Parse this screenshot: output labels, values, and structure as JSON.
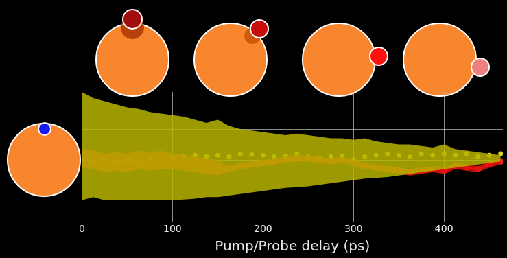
{
  "chart_data": {
    "type": "line",
    "x_label": "Pump/Probe delay (ps)",
    "x": [
      0,
      12.5,
      25,
      37.5,
      50,
      62.5,
      75,
      87.5,
      100,
      112.5,
      125,
      137.5,
      150,
      162.5,
      175,
      187.5,
      200,
      212.5,
      225,
      237.5,
      250,
      262.5,
      275,
      287.5,
      300,
      312.5,
      325,
      337.5,
      350,
      362.5,
      375,
      387.5,
      400,
      412.5,
      425,
      437.5,
      450,
      462.5
    ],
    "xlim": [
      0,
      465
    ],
    "xticks": [
      0,
      100,
      200,
      300,
      400
    ],
    "ylim": [
      -2,
      2.2
    ],
    "yticks": [
      -1,
      0,
      1
    ],
    "grid": true,
    "tick_labels": "x",
    "series": [
      {
        "type": "band",
        "color": "#b8b400",
        "upper": [
          2.2,
          2.0,
          1.9,
          1.8,
          1.7,
          1.65,
          1.55,
          1.5,
          1.45,
          1.4,
          1.3,
          1.2,
          1.3,
          1.1,
          1.0,
          0.95,
          0.9,
          0.85,
          0.8,
          0.85,
          0.8,
          0.75,
          0.7,
          0.7,
          0.65,
          0.7,
          0.6,
          0.55,
          0.5,
          0.5,
          0.45,
          0.4,
          0.5,
          0.35,
          0.3,
          0.25,
          0.2,
          0.15
        ],
        "lower": [
          -1.3,
          -1.2,
          -1.3,
          -1.3,
          -1.3,
          -1.3,
          -1.3,
          -1.3,
          -1.3,
          -1.28,
          -1.25,
          -1.2,
          -1.2,
          -1.15,
          -1.1,
          -1.05,
          -1.0,
          -0.95,
          -0.9,
          -0.88,
          -0.85,
          -0.8,
          -0.75,
          -0.7,
          -0.65,
          -0.6,
          -0.58,
          -0.55,
          -0.5,
          -0.45,
          -0.4,
          -0.35,
          -0.3,
          -0.25,
          -0.2,
          -0.15,
          -0.1,
          -0.05
        ]
      },
      {
        "type": "band",
        "color": "#e01010",
        "upper": [
          0.35,
          0.3,
          0.2,
          0.25,
          0.2,
          0.3,
          0.25,
          0.3,
          0.2,
          0.15,
          0.1,
          0.05,
          0.0,
          -0.2,
          -0.1,
          -0.05,
          0.0,
          0.05,
          0.1,
          0.15,
          0.15,
          0.1,
          0.05,
          0.1,
          0.0,
          -0.1,
          -0.15,
          -0.2,
          -0.25,
          -0.3,
          -0.25,
          -0.2,
          -0.25,
          -0.1,
          -0.15,
          -0.2,
          -0.05,
          0.05
        ],
        "lower": [
          -0.25,
          -0.3,
          -0.4,
          -0.35,
          -0.4,
          -0.3,
          -0.35,
          -0.3,
          -0.3,
          -0.35,
          -0.4,
          -0.45,
          -0.5,
          -0.4,
          -0.3,
          -0.25,
          -0.2,
          -0.15,
          -0.1,
          -0.05,
          -0.05,
          -0.1,
          -0.15,
          -0.1,
          -0.2,
          -0.3,
          -0.35,
          -0.4,
          -0.45,
          -0.5,
          -0.45,
          -0.4,
          -0.45,
          -0.3,
          -0.35,
          -0.4,
          -0.25,
          -0.15
        ]
      },
      {
        "type": "scatter",
        "color": "#d8d820",
        "marker": "circle",
        "line_style": "none",
        "values": [
          0.0,
          -0.1,
          0.05,
          -0.05,
          0.0,
          -0.1,
          0.05,
          0.0,
          0.05,
          0.1,
          0.15,
          0.12,
          0.15,
          0.1,
          0.2,
          0.18,
          0.15,
          0.1,
          0.12,
          0.2,
          0.1,
          0.05,
          0.1,
          0.12,
          0.0,
          0.1,
          0.15,
          0.2,
          0.15,
          0.1,
          0.2,
          0.15,
          0.2,
          0.15,
          0.2,
          0.1,
          0.15,
          0.2
        ]
      },
      {
        "type": "line",
        "color": "#ff2020",
        "marker": "circle",
        "line_style": "solid",
        "values": [
          0.05,
          0.0,
          -0.1,
          -0.05,
          -0.1,
          0.0,
          -0.05,
          0.0,
          -0.05,
          -0.1,
          -0.15,
          -0.2,
          -0.25,
          -0.3,
          -0.2,
          -0.15,
          -0.1,
          -0.05,
          0.0,
          0.05,
          0.05,
          0.0,
          -0.05,
          0.0,
          -0.1,
          -0.2,
          -0.25,
          -0.3,
          -0.35,
          -0.4,
          -0.35,
          -0.3,
          -0.35,
          -0.2,
          -0.25,
          -0.3,
          -0.15,
          -0.05
        ]
      }
    ]
  }
}
